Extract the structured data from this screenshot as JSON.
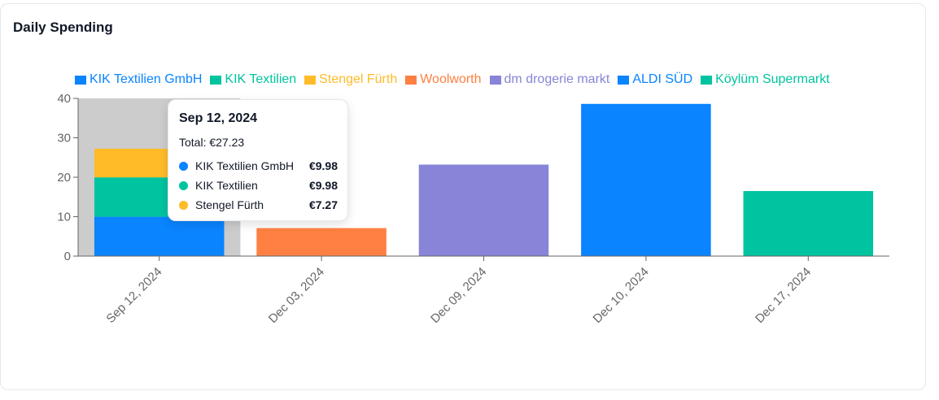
{
  "card": {
    "title": "Daily Spending"
  },
  "chart_data": {
    "type": "bar",
    "stacked": true,
    "categories": [
      "Sep 12, 2024",
      "Dec 03, 2024",
      "Dec 09, 2024",
      "Dec 10, 2024",
      "Dec 17, 2024"
    ],
    "ylim": [
      0,
      40
    ],
    "yticks": [
      0,
      10,
      20,
      30,
      40
    ],
    "legend_position": "top",
    "grid": false,
    "series": [
      {
        "name": "KIK Textilien GmbH",
        "color": "#0a84ff",
        "values": [
          9.98,
          0,
          0,
          0,
          0
        ]
      },
      {
        "name": "KIK Textilien",
        "color": "#00c49f",
        "values": [
          9.98,
          0,
          0,
          0,
          0
        ]
      },
      {
        "name": "Stengel Fürth",
        "color": "#ffbb28",
        "values": [
          7.27,
          0,
          0,
          0,
          0
        ]
      },
      {
        "name": "Woolworth",
        "color": "#ff8042",
        "values": [
          0,
          7.1,
          0,
          0,
          0
        ]
      },
      {
        "name": "dm drogerie markt",
        "color": "#8884d8",
        "values": [
          0,
          0,
          23.2,
          0,
          0
        ]
      },
      {
        "name": "ALDI SÜD",
        "color": "#0a84ff",
        "values": [
          0,
          0,
          0,
          38.6,
          0
        ]
      },
      {
        "name": "Köylüm Supermarkt",
        "color": "#00c49f",
        "values": [
          0,
          0,
          0,
          0,
          16.5
        ]
      }
    ],
    "highlighted_category": "Sep 12, 2024"
  },
  "tooltip": {
    "date": "Sep 12, 2024",
    "total": "Total: €27.23",
    "rows": [
      {
        "name": "KIK Textilien GmbH",
        "value": "€9.98",
        "color": "#0a84ff"
      },
      {
        "name": "KIK Textilien",
        "value": "€9.98",
        "color": "#00c49f"
      },
      {
        "name": "Stengel Fürth",
        "value": "€7.27",
        "color": "#ffbb28"
      }
    ]
  }
}
